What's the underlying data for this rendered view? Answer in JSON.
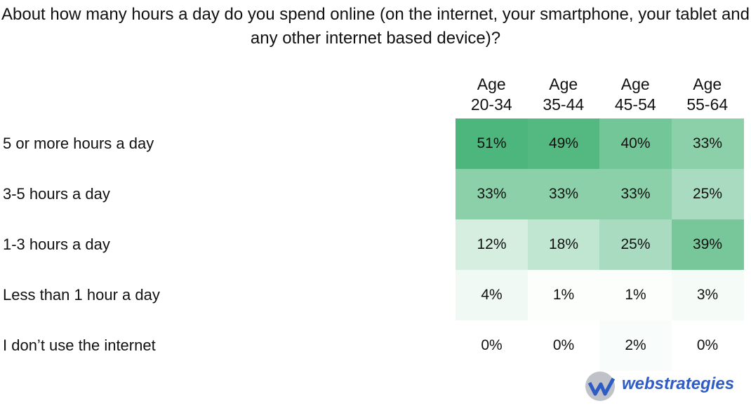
{
  "chart_data": {
    "type": "heatmap",
    "title": "About how many hours a day do you spend online (on the internet, your smartphone, your tablet and any other internet based device)?",
    "columns": [
      "Age 20-34",
      "Age 35-44",
      "Age 45-54",
      "Age 55-64"
    ],
    "rows": [
      "5 or more hours a day",
      "3-5 hours a day",
      "1-3 hours a day",
      "Less than 1 hour a day",
      "I don’t use the internet"
    ],
    "values": [
      [
        51,
        49,
        40,
        33
      ],
      [
        33,
        33,
        33,
        25
      ],
      [
        12,
        18,
        25,
        39
      ],
      [
        4,
        1,
        1,
        3
      ],
      [
        0,
        0,
        2,
        0
      ]
    ],
    "value_labels": [
      [
        "51%",
        "49%",
        "40%",
        "33%"
      ],
      [
        "33%",
        "33%",
        "33%",
        "25%"
      ],
      [
        "12%",
        "18%",
        "25%",
        "39%"
      ],
      [
        "4%",
        "1%",
        "1%",
        "3%"
      ],
      [
        "0%",
        "0%",
        "2%",
        "0%"
      ]
    ],
    "color": "#4db67c",
    "logo": "webstrategies"
  }
}
